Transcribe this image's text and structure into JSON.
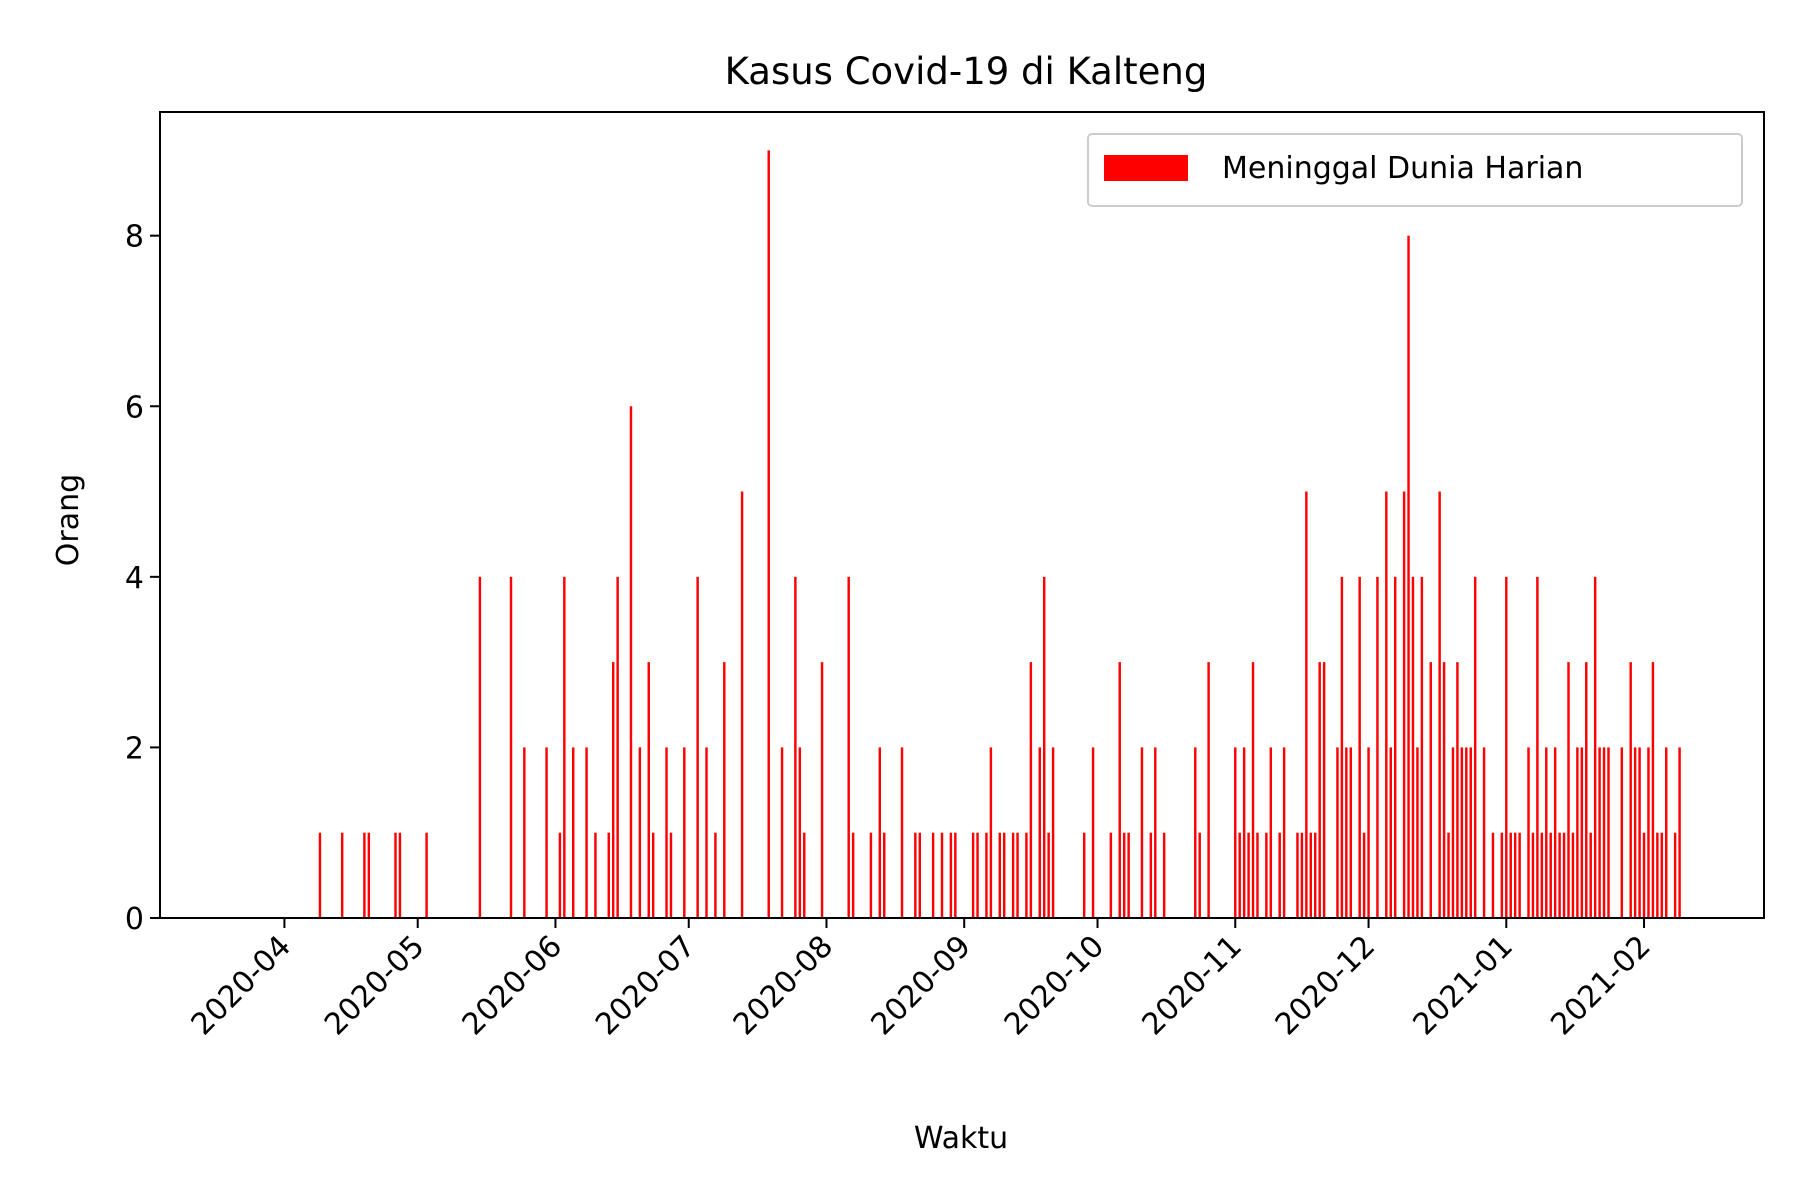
{
  "chart_data": {
    "type": "bar",
    "title": "Kasus Covid-19 di Kalteng",
    "xlabel": "Waktu",
    "ylabel": "Orang",
    "xlim": [
      "2020-03-04",
      "2021-02-28"
    ],
    "ylim": [
      0,
      9.45
    ],
    "x_tick_labels": [
      "2020-04",
      "2020-05",
      "2020-06",
      "2020-07",
      "2020-08",
      "2020-09",
      "2020-10",
      "2020-11",
      "2020-12",
      "2021-01",
      "2021-02"
    ],
    "y_tick_labels": [
      "0",
      "2",
      "4",
      "6",
      "8"
    ],
    "grid": false,
    "legend_position": "upper right",
    "series": [
      {
        "name": "Meninggal Dunia Harian",
        "color": "#ff0000",
        "points": [
          [
            "2020-04-09",
            1
          ],
          [
            "2020-04-14",
            1
          ],
          [
            "2020-04-19",
            1
          ],
          [
            "2020-04-20",
            1
          ],
          [
            "2020-04-26",
            1
          ],
          [
            "2020-04-27",
            1
          ],
          [
            "2020-05-03",
            1
          ],
          [
            "2020-05-15",
            4
          ],
          [
            "2020-05-22",
            4
          ],
          [
            "2020-05-25",
            2
          ],
          [
            "2020-05-30",
            2
          ],
          [
            "2020-06-02",
            1
          ],
          [
            "2020-06-03",
            4
          ],
          [
            "2020-06-05",
            2
          ],
          [
            "2020-06-08",
            2
          ],
          [
            "2020-06-10",
            1
          ],
          [
            "2020-06-13",
            1
          ],
          [
            "2020-06-14",
            3
          ],
          [
            "2020-06-15",
            4
          ],
          [
            "2020-06-18",
            6
          ],
          [
            "2020-06-20",
            2
          ],
          [
            "2020-06-22",
            3
          ],
          [
            "2020-06-23",
            1
          ],
          [
            "2020-06-26",
            2
          ],
          [
            "2020-06-27",
            1
          ],
          [
            "2020-06-30",
            2
          ],
          [
            "2020-07-03",
            4
          ],
          [
            "2020-07-05",
            2
          ],
          [
            "2020-07-07",
            1
          ],
          [
            "2020-07-09",
            3
          ],
          [
            "2020-07-13",
            5
          ],
          [
            "2020-07-19",
            9
          ],
          [
            "2020-07-22",
            2
          ],
          [
            "2020-07-25",
            4
          ],
          [
            "2020-07-26",
            2
          ],
          [
            "2020-07-27",
            1
          ],
          [
            "2020-07-31",
            3
          ],
          [
            "2020-08-06",
            4
          ],
          [
            "2020-08-07",
            1
          ],
          [
            "2020-08-11",
            1
          ],
          [
            "2020-08-13",
            2
          ],
          [
            "2020-08-14",
            1
          ],
          [
            "2020-08-18",
            2
          ],
          [
            "2020-08-21",
            1
          ],
          [
            "2020-08-22",
            1
          ],
          [
            "2020-08-25",
            1
          ],
          [
            "2020-08-27",
            1
          ],
          [
            "2020-08-29",
            1
          ],
          [
            "2020-08-30",
            1
          ],
          [
            "2020-09-03",
            1
          ],
          [
            "2020-09-04",
            1
          ],
          [
            "2020-09-06",
            1
          ],
          [
            "2020-09-07",
            2
          ],
          [
            "2020-09-09",
            1
          ],
          [
            "2020-09-10",
            1
          ],
          [
            "2020-09-12",
            1
          ],
          [
            "2020-09-13",
            1
          ],
          [
            "2020-09-15",
            1
          ],
          [
            "2020-09-16",
            3
          ],
          [
            "2020-09-18",
            2
          ],
          [
            "2020-09-19",
            4
          ],
          [
            "2020-09-20",
            1
          ],
          [
            "2020-09-21",
            2
          ],
          [
            "2020-09-28",
            1
          ],
          [
            "2020-09-30",
            2
          ],
          [
            "2020-10-04",
            1
          ],
          [
            "2020-10-06",
            3
          ],
          [
            "2020-10-07",
            1
          ],
          [
            "2020-10-08",
            1
          ],
          [
            "2020-10-11",
            2
          ],
          [
            "2020-10-13",
            1
          ],
          [
            "2020-10-14",
            2
          ],
          [
            "2020-10-16",
            1
          ],
          [
            "2020-10-23",
            2
          ],
          [
            "2020-10-24",
            1
          ],
          [
            "2020-10-26",
            3
          ],
          [
            "2020-11-01",
            2
          ],
          [
            "2020-11-02",
            1
          ],
          [
            "2020-11-03",
            2
          ],
          [
            "2020-11-04",
            1
          ],
          [
            "2020-11-05",
            3
          ],
          [
            "2020-11-06",
            1
          ],
          [
            "2020-11-08",
            1
          ],
          [
            "2020-11-09",
            2
          ],
          [
            "2020-11-11",
            1
          ],
          [
            "2020-11-12",
            2
          ],
          [
            "2020-11-15",
            1
          ],
          [
            "2020-11-16",
            1
          ],
          [
            "2020-11-17",
            5
          ],
          [
            "2020-11-18",
            1
          ],
          [
            "2020-11-19",
            1
          ],
          [
            "2020-11-20",
            3
          ],
          [
            "2020-11-21",
            3
          ],
          [
            "2020-11-24",
            2
          ],
          [
            "2020-11-25",
            4
          ],
          [
            "2020-11-26",
            2
          ],
          [
            "2020-11-27",
            2
          ],
          [
            "2020-11-29",
            4
          ],
          [
            "2020-11-30",
            1
          ],
          [
            "2020-12-01",
            2
          ],
          [
            "2020-12-03",
            4
          ],
          [
            "2020-12-05",
            5
          ],
          [
            "2020-12-06",
            2
          ],
          [
            "2020-12-07",
            4
          ],
          [
            "2020-12-09",
            5
          ],
          [
            "2020-12-10",
            8
          ],
          [
            "2020-12-11",
            4
          ],
          [
            "2020-12-12",
            2
          ],
          [
            "2020-12-13",
            4
          ],
          [
            "2020-12-15",
            3
          ],
          [
            "2020-12-17",
            5
          ],
          [
            "2020-12-18",
            3
          ],
          [
            "2020-12-19",
            1
          ],
          [
            "2020-12-20",
            2
          ],
          [
            "2020-12-21",
            3
          ],
          [
            "2020-12-22",
            2
          ],
          [
            "2020-12-23",
            2
          ],
          [
            "2020-12-24",
            2
          ],
          [
            "2020-12-25",
            4
          ],
          [
            "2020-12-27",
            2
          ],
          [
            "2020-12-29",
            1
          ],
          [
            "2020-12-31",
            1
          ],
          [
            "2021-01-01",
            4
          ],
          [
            "2021-01-02",
            1
          ],
          [
            "2021-01-03",
            1
          ],
          [
            "2021-01-04",
            1
          ],
          [
            "2021-01-06",
            2
          ],
          [
            "2021-01-07",
            1
          ],
          [
            "2021-01-08",
            4
          ],
          [
            "2021-01-09",
            1
          ],
          [
            "2021-01-10",
            2
          ],
          [
            "2021-01-11",
            1
          ],
          [
            "2021-01-12",
            2
          ],
          [
            "2021-01-13",
            1
          ],
          [
            "2021-01-14",
            1
          ],
          [
            "2021-01-15",
            3
          ],
          [
            "2021-01-16",
            1
          ],
          [
            "2021-01-17",
            2
          ],
          [
            "2021-01-18",
            2
          ],
          [
            "2021-01-19",
            3
          ],
          [
            "2021-01-20",
            1
          ],
          [
            "2021-01-21",
            4
          ],
          [
            "2021-01-22",
            2
          ],
          [
            "2021-01-23",
            2
          ],
          [
            "2021-01-24",
            2
          ],
          [
            "2021-01-27",
            2
          ],
          [
            "2021-01-29",
            3
          ],
          [
            "2021-01-30",
            2
          ],
          [
            "2021-01-31",
            2
          ],
          [
            "2021-02-01",
            1
          ],
          [
            "2021-02-02",
            2
          ],
          [
            "2021-02-03",
            3
          ],
          [
            "2021-02-04",
            1
          ],
          [
            "2021-02-05",
            1
          ],
          [
            "2021-02-06",
            2
          ],
          [
            "2021-02-08",
            1
          ],
          [
            "2021-02-09",
            2
          ]
        ]
      }
    ]
  }
}
